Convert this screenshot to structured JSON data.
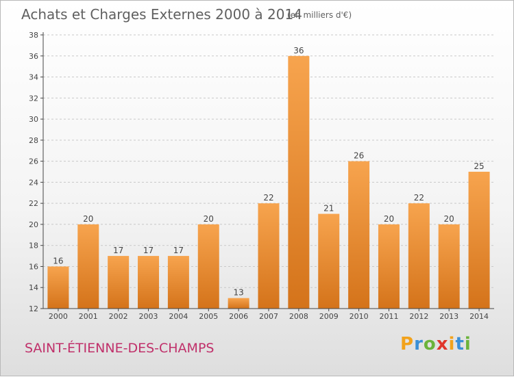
{
  "header": {
    "title": "Achats et Charges Externes 2000 à 2014",
    "subtitle": "(en milliers d'€)"
  },
  "footer": {
    "commune": "SAINT-ÉTIENNE-DES-CHAMPS",
    "logo_text": "Proxiti"
  },
  "colors": {
    "bar_light": "#f7a44e",
    "bar_dark": "#d4731a",
    "commune": "#c0306a",
    "axis": "#444444"
  },
  "chart_data": {
    "type": "bar",
    "title": "Achats et Charges Externes 2000 à 2014",
    "subtitle": "(en milliers d'€)",
    "xlabel": "",
    "ylabel": "",
    "categories": [
      "2000",
      "2001",
      "2002",
      "2003",
      "2004",
      "2005",
      "2006",
      "2007",
      "2008",
      "2009",
      "2010",
      "2011",
      "2012",
      "2013",
      "2014"
    ],
    "values": [
      16,
      20,
      17,
      17,
      17,
      20,
      13,
      22,
      36,
      21,
      26,
      20,
      22,
      20,
      25
    ],
    "ylim": [
      12,
      38
    ],
    "yticks": [
      12,
      14,
      16,
      18,
      20,
      22,
      24,
      26,
      28,
      30,
      32,
      34,
      36,
      38
    ],
    "grid": "horizontal dashed",
    "legend": "none"
  }
}
